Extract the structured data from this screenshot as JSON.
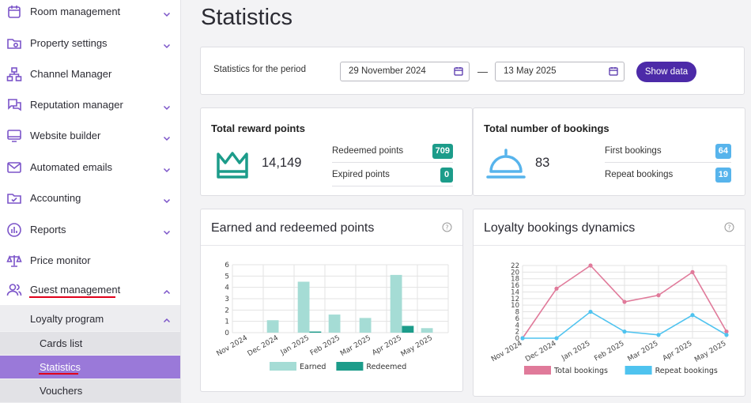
{
  "sidebar": {
    "items": [
      {
        "label": "Room management",
        "icon": "calendar-icon",
        "chevron": "down"
      },
      {
        "label": "Property settings",
        "icon": "settings-folder-icon",
        "chevron": "down"
      },
      {
        "label": "Channel Manager",
        "icon": "network-icon",
        "chevron": ""
      },
      {
        "label": "Reputation manager",
        "icon": "chat-bubbles-icon",
        "chevron": "down"
      },
      {
        "label": "Website builder",
        "icon": "monitor-icon",
        "chevron": "down"
      },
      {
        "label": "Automated emails",
        "icon": "envelope-icon",
        "chevron": "down"
      },
      {
        "label": "Accounting",
        "icon": "folder-check-icon",
        "chevron": "down"
      },
      {
        "label": "Reports",
        "icon": "bar-chart-icon",
        "chevron": "down"
      },
      {
        "label": "Price monitor",
        "icon": "scales-icon",
        "chevron": ""
      },
      {
        "label": "Guest management",
        "icon": "users-icon",
        "chevron": "up"
      }
    ],
    "loyalty_label": "Loyalty program",
    "leaves": [
      {
        "label": "Cards list",
        "active": false
      },
      {
        "label": "Statistics",
        "active": true
      },
      {
        "label": "Vouchers",
        "active": false
      }
    ],
    "accent_color": "#9a79d9",
    "underline_color": "#e0001a"
  },
  "main": {
    "title": "Statistics",
    "period": {
      "label": "Statistics for the period",
      "start_date": "29 November 2024",
      "end_date": "13 May 2025",
      "separator": "—",
      "button_label": "Show data",
      "button_color": "#4c2aa8"
    },
    "reward": {
      "title": "Total reward points",
      "total": "14,149",
      "rows": [
        {
          "label": "Redeemed points",
          "value": "709"
        },
        {
          "label": "Expired points",
          "value": "0"
        }
      ],
      "icon": "crown-icon",
      "color": "#1c9c8a"
    },
    "bookings": {
      "title": "Total number of bookings",
      "total": "83",
      "rows": [
        {
          "label": "First bookings",
          "value": "64"
        },
        {
          "label": "Repeat bookings",
          "value": "19"
        }
      ],
      "icon": "service-bell-icon",
      "color": "#57b4ec"
    }
  },
  "chart_data": [
    {
      "type": "bar",
      "title": "Earned and redeemed points",
      "categories": [
        "Nov 2024",
        "Dec 2024",
        "Jan 2025",
        "Feb 2025",
        "Mar 2025",
        "Apr 2025",
        "May 2025"
      ],
      "series": [
        {
          "name": "Earned",
          "values": [
            0,
            1.1,
            4.5,
            1.6,
            1.3,
            5.1,
            0.4
          ],
          "color": "#a5dcd5"
        },
        {
          "name": "Redeemed",
          "values": [
            0,
            0,
            0.1,
            0,
            0,
            0.6,
            0
          ],
          "color": "#1c9c8a"
        }
      ],
      "ylim": [
        0,
        6
      ],
      "yticks": [
        0,
        1,
        2,
        3,
        4,
        5,
        6
      ],
      "grid": true,
      "legend": "bottom"
    },
    {
      "type": "line",
      "title": "Loyalty bookings dynamics",
      "categories": [
        "Nov 2024",
        "Dec 2024",
        "Jan 2025",
        "Feb 2025",
        "Mar 2025",
        "Apr 2025",
        "May 2025"
      ],
      "series": [
        {
          "name": "Total bookings",
          "values": [
            0,
            15,
            22,
            11,
            13,
            20,
            2
          ],
          "color": "#e07a9a"
        },
        {
          "name": "Repeat bookings",
          "values": [
            0,
            0,
            8,
            2,
            1,
            7,
            1
          ],
          "color": "#4fc3ef"
        }
      ],
      "ylim": [
        0,
        22
      ],
      "yticks": [
        0,
        2,
        4,
        6,
        8,
        10,
        12,
        14,
        16,
        18,
        20,
        22
      ],
      "grid": true,
      "legend": "bottom"
    }
  ]
}
